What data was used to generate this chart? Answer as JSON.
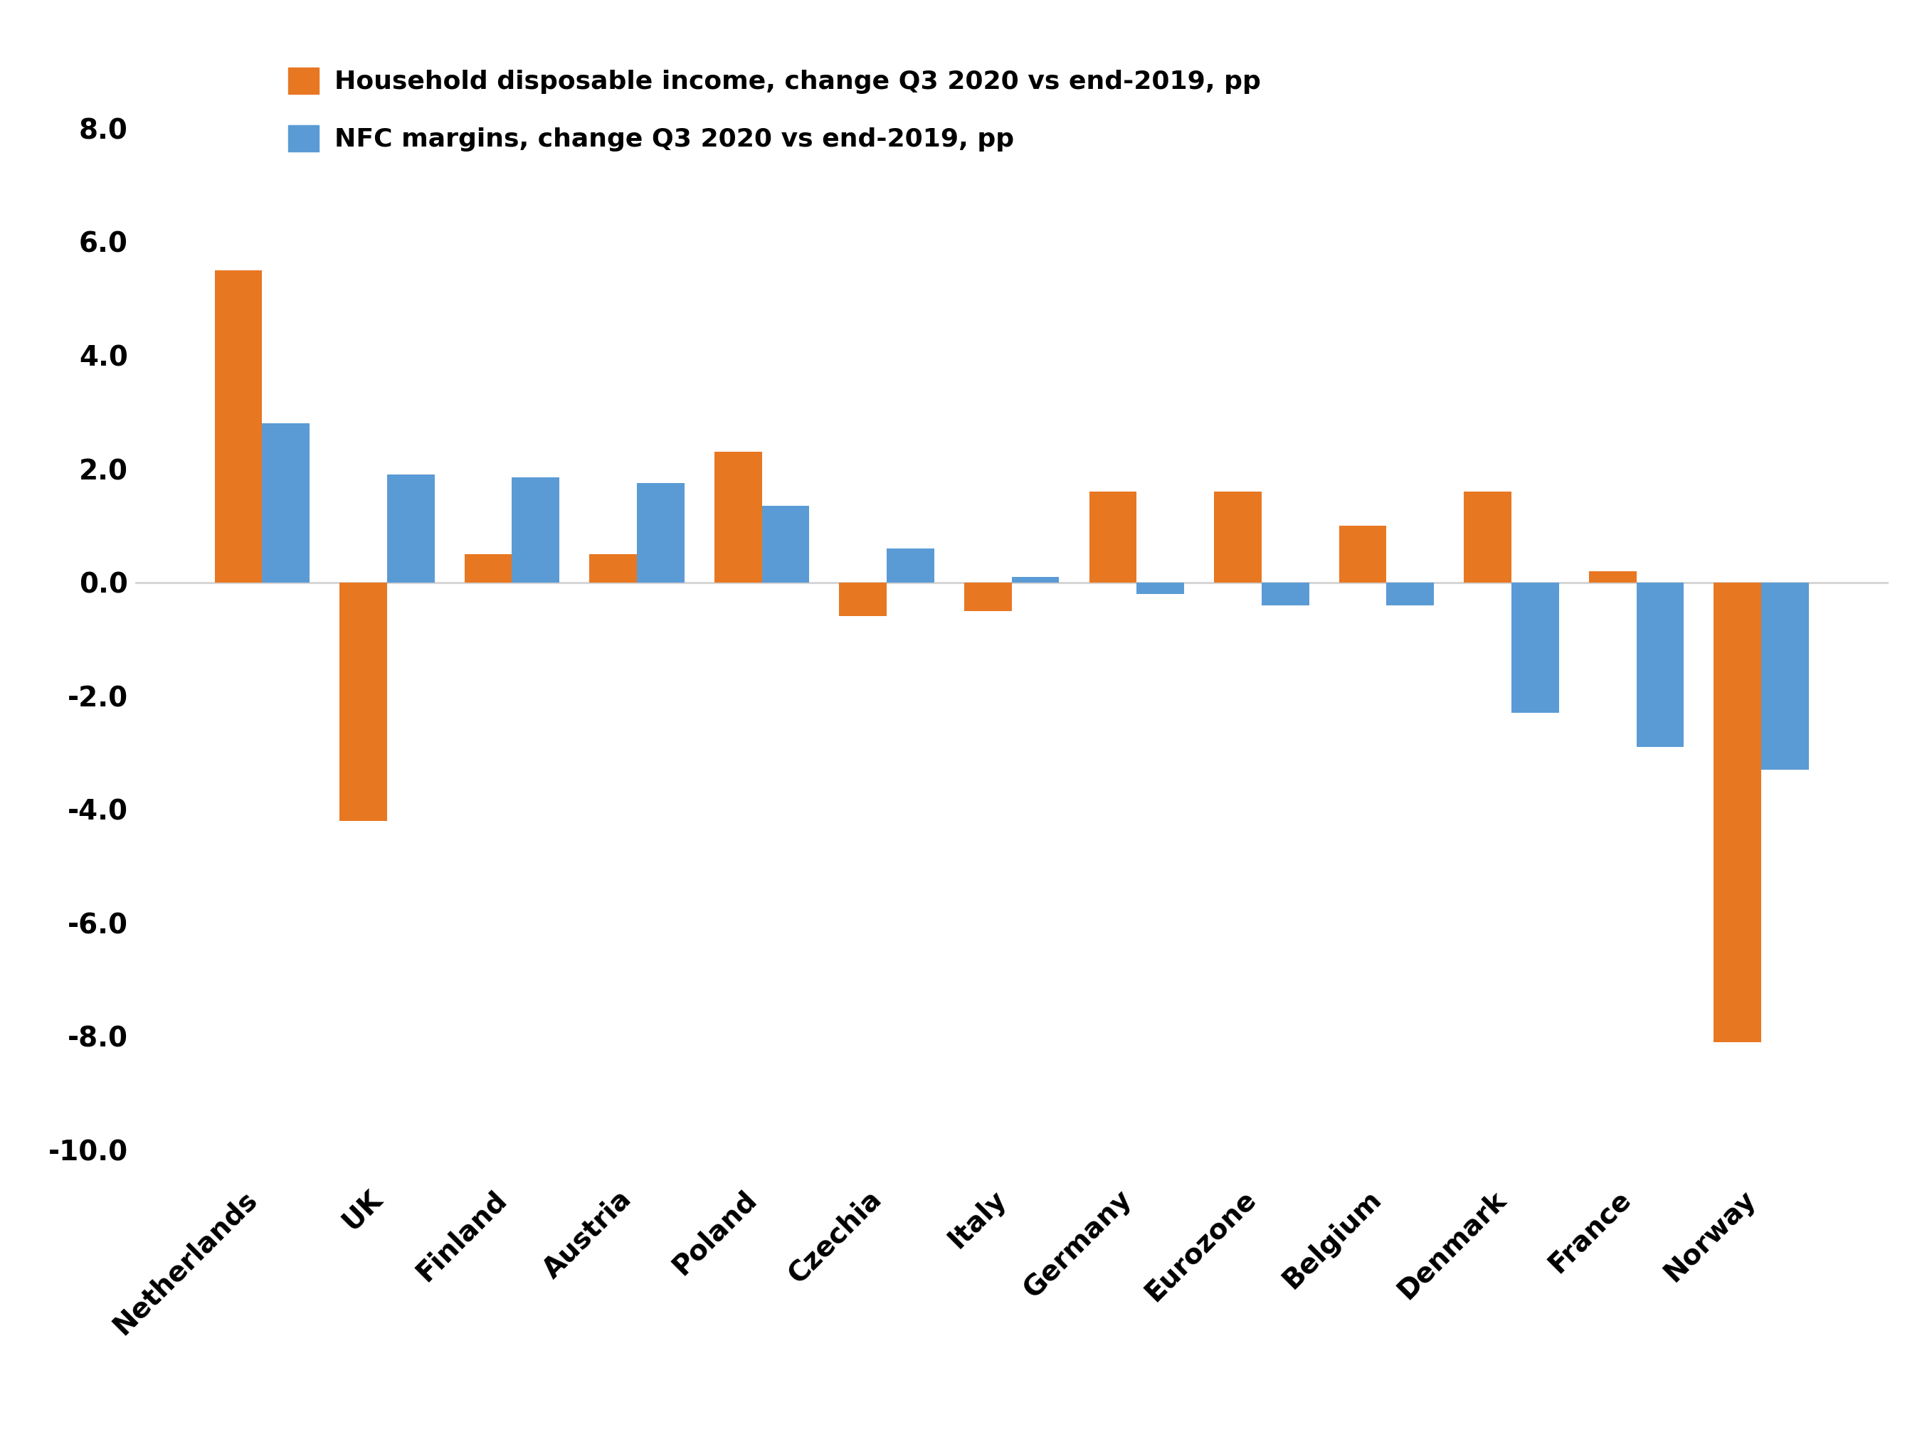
{
  "categories": [
    "Netherlands",
    "UK",
    "Finland",
    "Austria",
    "Poland",
    "Czechia",
    "Italy",
    "Germany",
    "Eurozone",
    "Belgium",
    "Denmark",
    "France",
    "Norway"
  ],
  "household_income": [
    5.5,
    -4.2,
    0.5,
    0.5,
    2.3,
    -0.6,
    -0.5,
    1.6,
    1.6,
    1.0,
    1.6,
    0.2,
    -8.1
  ],
  "nfc_margins": [
    2.8,
    1.9,
    1.85,
    1.75,
    1.35,
    0.6,
    0.1,
    -0.2,
    -0.4,
    -0.4,
    -2.3,
    -2.9,
    -3.3
  ],
  "household_color": "#E87722",
  "nfc_color": "#5B9BD5",
  "household_label": "Household disposable income, change Q3 2020 vs end-2019, pp",
  "nfc_label": "NFC margins, change Q3 2020 vs end-2019, pp",
  "ylim": [
    -10.5,
    9.5
  ],
  "yticks": [
    -10.0,
    -8.0,
    -6.0,
    -4.0,
    -2.0,
    0.0,
    2.0,
    4.0,
    6.0,
    8.0
  ],
  "background_color": "#ffffff",
  "legend_fontsize": 26,
  "tick_fontsize": 28,
  "bar_width": 0.38
}
